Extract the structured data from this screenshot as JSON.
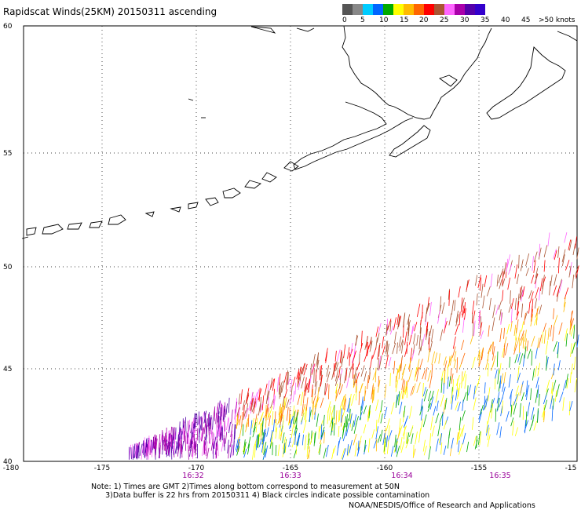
{
  "header": {
    "title": "Rapidscat Winds(25KM) 20150311 ascending"
  },
  "colorbar": {
    "colors": [
      "#555555",
      "#888888",
      "#00ccff",
      "#0066ff",
      "#00aa00",
      "#ffff00",
      "#ffbb00",
      "#ff6600",
      "#ff0000",
      "#aa5533",
      "#ff66ff",
      "#aa00aa",
      "#5500aa",
      "#3300cc"
    ],
    "labels": [
      "0",
      "5",
      "10",
      "15",
      "20",
      "25",
      "30",
      "35",
      "40",
      "45",
      ">50 knots"
    ]
  },
  "map": {
    "lat_labels": [
      "60",
      "55",
      "50",
      "45",
      "40"
    ],
    "lon_labels": [
      "-180",
      "-175",
      "-170",
      "-165",
      "-160",
      "-155",
      "-15"
    ],
    "time_labels": [
      "16:32",
      "16:33",
      "16:34",
      "16:35"
    ],
    "time_color": "#990099",
    "extent": {
      "lon_min": -180,
      "lon_max": -150,
      "lat_min": 40,
      "lat_max": 60
    }
  },
  "footer": {
    "notes": "Note: 1) Times are GMT 2)Times along bottom correspond to measurement at 50N\n      3)Data buffer is 22 hrs from 20150311 4) Black circles indicate possible contamination",
    "credit": "NOAA/NESDIS/Office of Research and Applications"
  }
}
